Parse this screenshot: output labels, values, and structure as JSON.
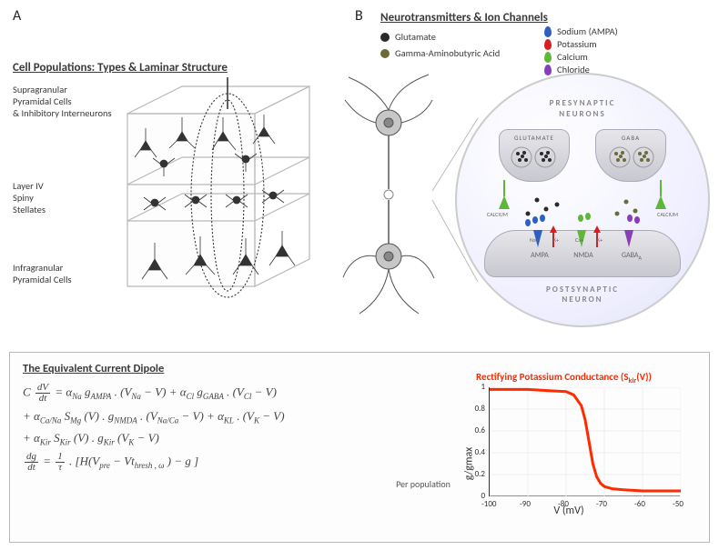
{
  "labels": {
    "panelA": "A",
    "panelB": "B",
    "panelA_title": "Cell Populations: Types & Laminar Structure",
    "supra": "Supragranular\nPyramidal Cells\n& Inhibitory Interneurons",
    "layer4": "Layer IV\nSpiny\nStellates",
    "infra": "Infragranular\nPyramidal Cells",
    "panelB_title": "Neurotransmitters & Ion Channels",
    "glutamate": "Glutamate",
    "gaba": "Gamma-Aminobutyric Acid",
    "sodium": "Sodium (AMPA)",
    "potassium": "Potassium",
    "calcium": "Calcium",
    "chloride": "Chloride",
    "presyn": "PRESYNAPTIC\nNEURONS",
    "postsyn": "POSTSYNAPTIC\nNEURON",
    "glutamate_term": "GLUTAMATE",
    "gaba_term": "GABA",
    "calcium_lbl": "CALCIUM",
    "ampa": "AMPA",
    "nmda": "NMDA",
    "gabaa": "GABA",
    "na_ion": "Na+",
    "k_ion": "K+",
    "ca_ion": "Ca+",
    "eqbox_title": "The Equivalent Current Dipole",
    "eq_line1_a": "C",
    "eq_line1_b": "= α",
    "eq1_sub1": "Na",
    "eq1_g1": " g",
    "eq1_sub2": "AMPA",
    "eq1_v1": " . (V",
    "eq1_sub3": "Na",
    "eq1_mv": " − V)  +  α",
    "eq1_sub4": "Cl",
    "eq1_g2": " g",
    "eq1_sub5": "GABA",
    "eq1_v2": " . (V",
    "eq1_sub6": "Cl",
    "eq1_end": " − V)",
    "eq2_a": "+  α",
    "eq2_sub1": "Ca/Na",
    "eq2_s": " S",
    "eq2_sub2": "Mg",
    "eq2_v": " (V) . g",
    "eq2_sub3": "NMDA",
    "eq2_vn": " . (V",
    "eq2_sub4": "Na/Ca",
    "eq2_mv": " − V)  +   α",
    "eq2_sub5": "KL",
    "eq2_vk": " . (V",
    "eq2_sub6": "K",
    "eq2_end": " − V)",
    "eq3_a": "+  α",
    "eq3_sub1": "Kir",
    "eq3_s": " S",
    "eq3_sub2": "Kir",
    "eq3_v": " (V) . g",
    "eq3_sub3": "Kir",
    "eq3_vk": " (V",
    "eq3_sub4": "K",
    "eq3_end": " − V)",
    "eq4_pre": "=",
    "eq4_frac_num": "1",
    "eq4_frac_den": "τ",
    "eq4_body": " . [H(V",
    "eq4_sub1": "pre",
    "eq4_th": " − Vt",
    "eq4_sub2": "hresh , ω",
    "eq4_end": ")  − g ]",
    "per_pop": "Per population",
    "dV": "dV",
    "dt": "dt",
    "dg": "dg"
  },
  "colors": {
    "glutamate": "#2a2a2a",
    "gaba_nt": "#6b6b3a",
    "sodium": "#2d5fc4",
    "potassium": "#d81f1f",
    "calcium": "#5fb739",
    "chloride": "#8a3db8",
    "chart_line": "#ff2a00",
    "chart_title": "#ff2a00",
    "axis": "#333333",
    "grid": "#eaeaea",
    "box_border": "#b8b8b8"
  },
  "chart": {
    "type": "line",
    "title_a": "Rectifying Potassium Conductance  (S",
    "title_sub": "kir",
    "title_b": "(V))",
    "xlabel": "V (mV)",
    "ylabel": "g/gmax",
    "xlim": [
      -100,
      -50
    ],
    "ylim": [
      0,
      1
    ],
    "xticks": [
      -100,
      -90,
      -80,
      -70,
      -60,
      -50
    ],
    "yticks": [
      0,
      0.2,
      0.4,
      0.6,
      0.8,
      1
    ],
    "line_color": "#ff2a00",
    "line_width": 3,
    "background_color": "#ffffff",
    "grid_color": "#eeeeee",
    "series": {
      "x": [
        -100,
        -95,
        -90,
        -85,
        -80,
        -78,
        -76,
        -75,
        -74,
        -73,
        -72,
        -71,
        -70,
        -68,
        -65,
        -60,
        -55,
        -50
      ],
      "y": [
        0.98,
        0.98,
        0.98,
        0.97,
        0.96,
        0.93,
        0.83,
        0.7,
        0.5,
        0.3,
        0.18,
        0.12,
        0.09,
        0.07,
        0.06,
        0.05,
        0.05,
        0.05
      ]
    }
  }
}
